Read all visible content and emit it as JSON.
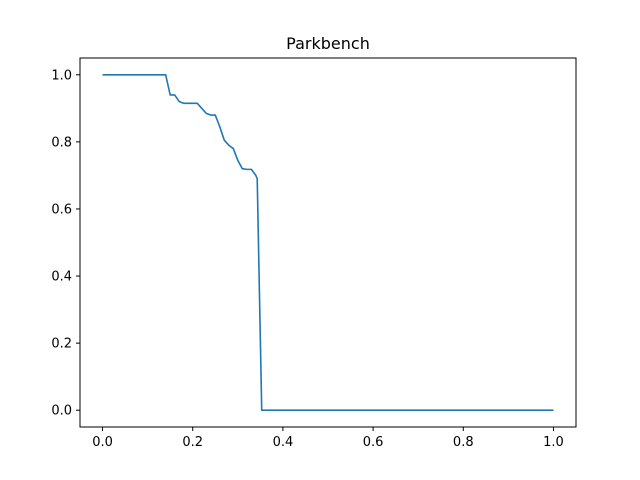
{
  "chart_data": {
    "type": "line",
    "title": "Parkbench",
    "xlabel": "",
    "ylabel": "",
    "xlim": [
      -0.05,
      1.05
    ],
    "ylim": [
      -0.05,
      1.05
    ],
    "grid": false,
    "xticks": [
      0.0,
      0.2,
      0.4,
      0.6,
      0.8,
      1.0
    ],
    "xtick_labels": [
      "0.0",
      "0.2",
      "0.4",
      "0.6",
      "0.8",
      "1.0"
    ],
    "yticks": [
      0.0,
      0.2,
      0.4,
      0.6,
      0.8,
      1.0
    ],
    "ytick_labels": [
      "0.0",
      "0.2",
      "0.4",
      "0.6",
      "0.8",
      "1.0"
    ],
    "series": [
      {
        "color": "#1f77b4",
        "x": [
          0.0,
          0.14,
          0.15,
          0.16,
          0.17,
          0.18,
          0.19,
          0.2,
          0.21,
          0.22,
          0.23,
          0.24,
          0.25,
          0.26,
          0.27,
          0.28,
          0.29,
          0.3,
          0.31,
          0.32,
          0.33,
          0.34,
          0.343,
          0.353,
          1.0
        ],
        "y": [
          1.0,
          1.0,
          0.94,
          0.94,
          0.92,
          0.915,
          0.915,
          0.915,
          0.915,
          0.9,
          0.885,
          0.88,
          0.88,
          0.845,
          0.805,
          0.79,
          0.78,
          0.745,
          0.72,
          0.718,
          0.718,
          0.7,
          0.69,
          0.0,
          0.0
        ]
      }
    ]
  }
}
